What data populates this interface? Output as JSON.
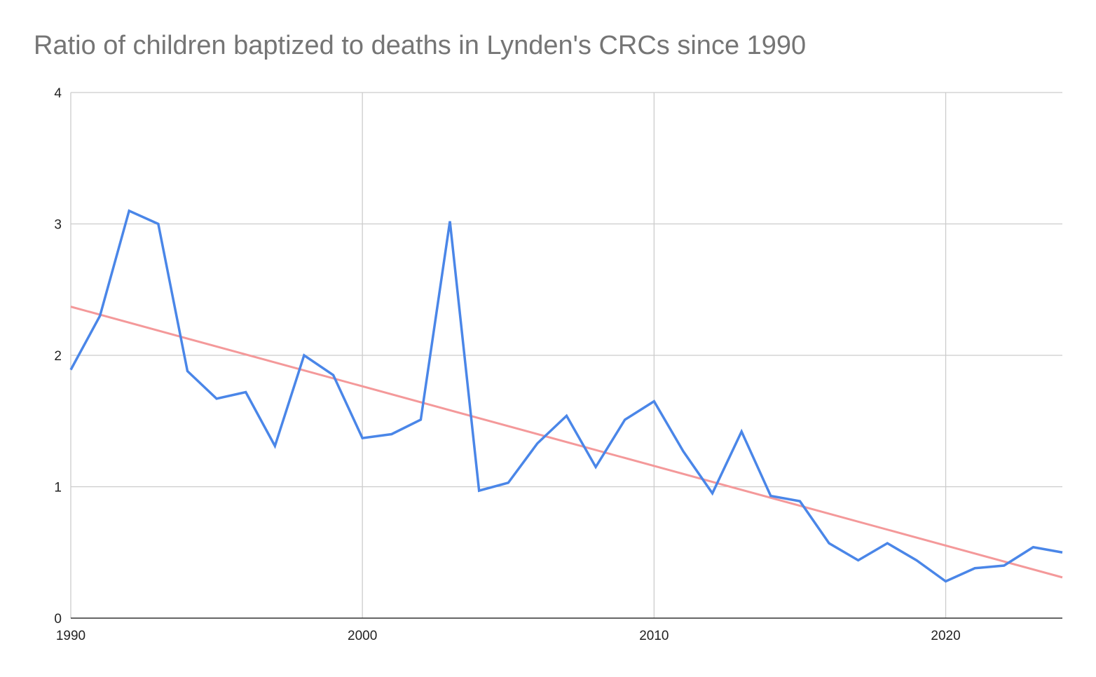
{
  "chart_data": {
    "type": "line",
    "title": "Ratio of children baptized to deaths in Lynden's CRCs since 1990",
    "xlabel": "",
    "ylabel": "",
    "xlim": [
      1990,
      2024
    ],
    "ylim": [
      0,
      4
    ],
    "x_ticks": [
      1990,
      2000,
      2010,
      2020
    ],
    "y_ticks": [
      0,
      1,
      2,
      3,
      4
    ],
    "grid": true,
    "legend": "none",
    "x": [
      1990,
      1991,
      1992,
      1993,
      1994,
      1995,
      1996,
      1997,
      1998,
      1999,
      2000,
      2001,
      2002,
      2003,
      2004,
      2005,
      2006,
      2007,
      2008,
      2009,
      2010,
      2011,
      2012,
      2013,
      2014,
      2015,
      2016,
      2017,
      2018,
      2019,
      2020,
      2021,
      2022,
      2023,
      2024
    ],
    "series": [
      {
        "color": "#4a86e8",
        "values": [
          1.89,
          2.3,
          3.1,
          3.0,
          1.88,
          1.67,
          1.72,
          1.31,
          2.0,
          1.85,
          1.37,
          1.4,
          1.51,
          3.02,
          0.97,
          1.03,
          1.33,
          1.54,
          1.15,
          1.51,
          1.65,
          1.27,
          0.95,
          1.42,
          0.93,
          0.89,
          0.57,
          0.44,
          0.57,
          0.44,
          0.28,
          0.38,
          0.4,
          0.54,
          0.5
        ]
      }
    ],
    "trendline": {
      "type": "linear",
      "color": "#f4999a",
      "start": [
        1990,
        2.37
      ],
      "end": [
        2024,
        0.31
      ]
    },
    "colors": {
      "grid": "#cccccc",
      "axis": "#333333"
    }
  }
}
